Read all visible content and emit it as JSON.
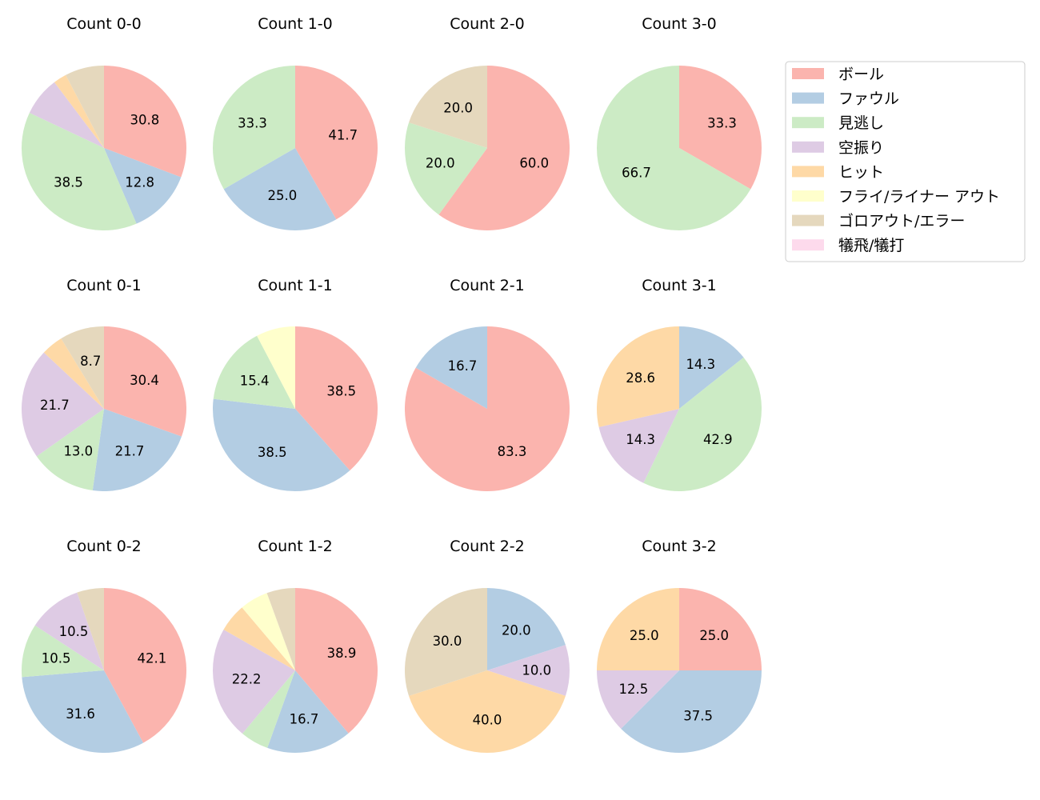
{
  "chart_data": {
    "type": "pie",
    "direction": "clockwise",
    "start": "top",
    "legend_position": "right",
    "categories": [
      "ボール",
      "ファウル",
      "見逃し",
      "空振り",
      "ヒット",
      "フライ/ライナー アウト",
      "ゴロアウト/エラー",
      "犠飛/犠打"
    ],
    "colors": [
      "#fbb4ae",
      "#b3cde3",
      "#ccebc5",
      "#decbe4",
      "#fed9a6",
      "#ffffcc",
      "#e5d8bd",
      "#fddaec"
    ],
    "charts": [
      {
        "title": "Count 0-0",
        "values": [
          30.8,
          12.8,
          38.5,
          7.7,
          2.6,
          0,
          7.7,
          0
        ]
      },
      {
        "title": "Count 1-0",
        "values": [
          41.7,
          25.0,
          33.3,
          0,
          0,
          0,
          0,
          0
        ]
      },
      {
        "title": "Count 2-0",
        "values": [
          60.0,
          0,
          20.0,
          0,
          0,
          0,
          20.0,
          0
        ]
      },
      {
        "title": "Count 3-0",
        "values": [
          33.3,
          0,
          66.7,
          0,
          0,
          0,
          0,
          0
        ]
      },
      {
        "title": "Count 0-1",
        "values": [
          30.4,
          21.7,
          13.0,
          21.7,
          4.3,
          0,
          8.7,
          0
        ]
      },
      {
        "title": "Count 1-1",
        "values": [
          38.5,
          38.5,
          15.4,
          0,
          0,
          7.7,
          0,
          0
        ]
      },
      {
        "title": "Count 2-1",
        "values": [
          83.3,
          16.7,
          0,
          0,
          0,
          0,
          0,
          0
        ]
      },
      {
        "title": "Count 3-1",
        "values": [
          0,
          14.3,
          42.9,
          14.3,
          28.6,
          0,
          0,
          0
        ]
      },
      {
        "title": "Count 0-2",
        "values": [
          42.1,
          31.6,
          10.5,
          10.5,
          0,
          0,
          5.3,
          0
        ]
      },
      {
        "title": "Count 1-2",
        "values": [
          38.9,
          16.7,
          5.6,
          22.2,
          5.6,
          5.6,
          5.6,
          0
        ]
      },
      {
        "title": "Count 2-2",
        "values": [
          0,
          20.0,
          0,
          10.0,
          40.0,
          0,
          30.0,
          0
        ]
      },
      {
        "title": "Count 3-2",
        "values": [
          25.0,
          37.5,
          0,
          12.5,
          25.0,
          0,
          0,
          0
        ]
      }
    ]
  }
}
